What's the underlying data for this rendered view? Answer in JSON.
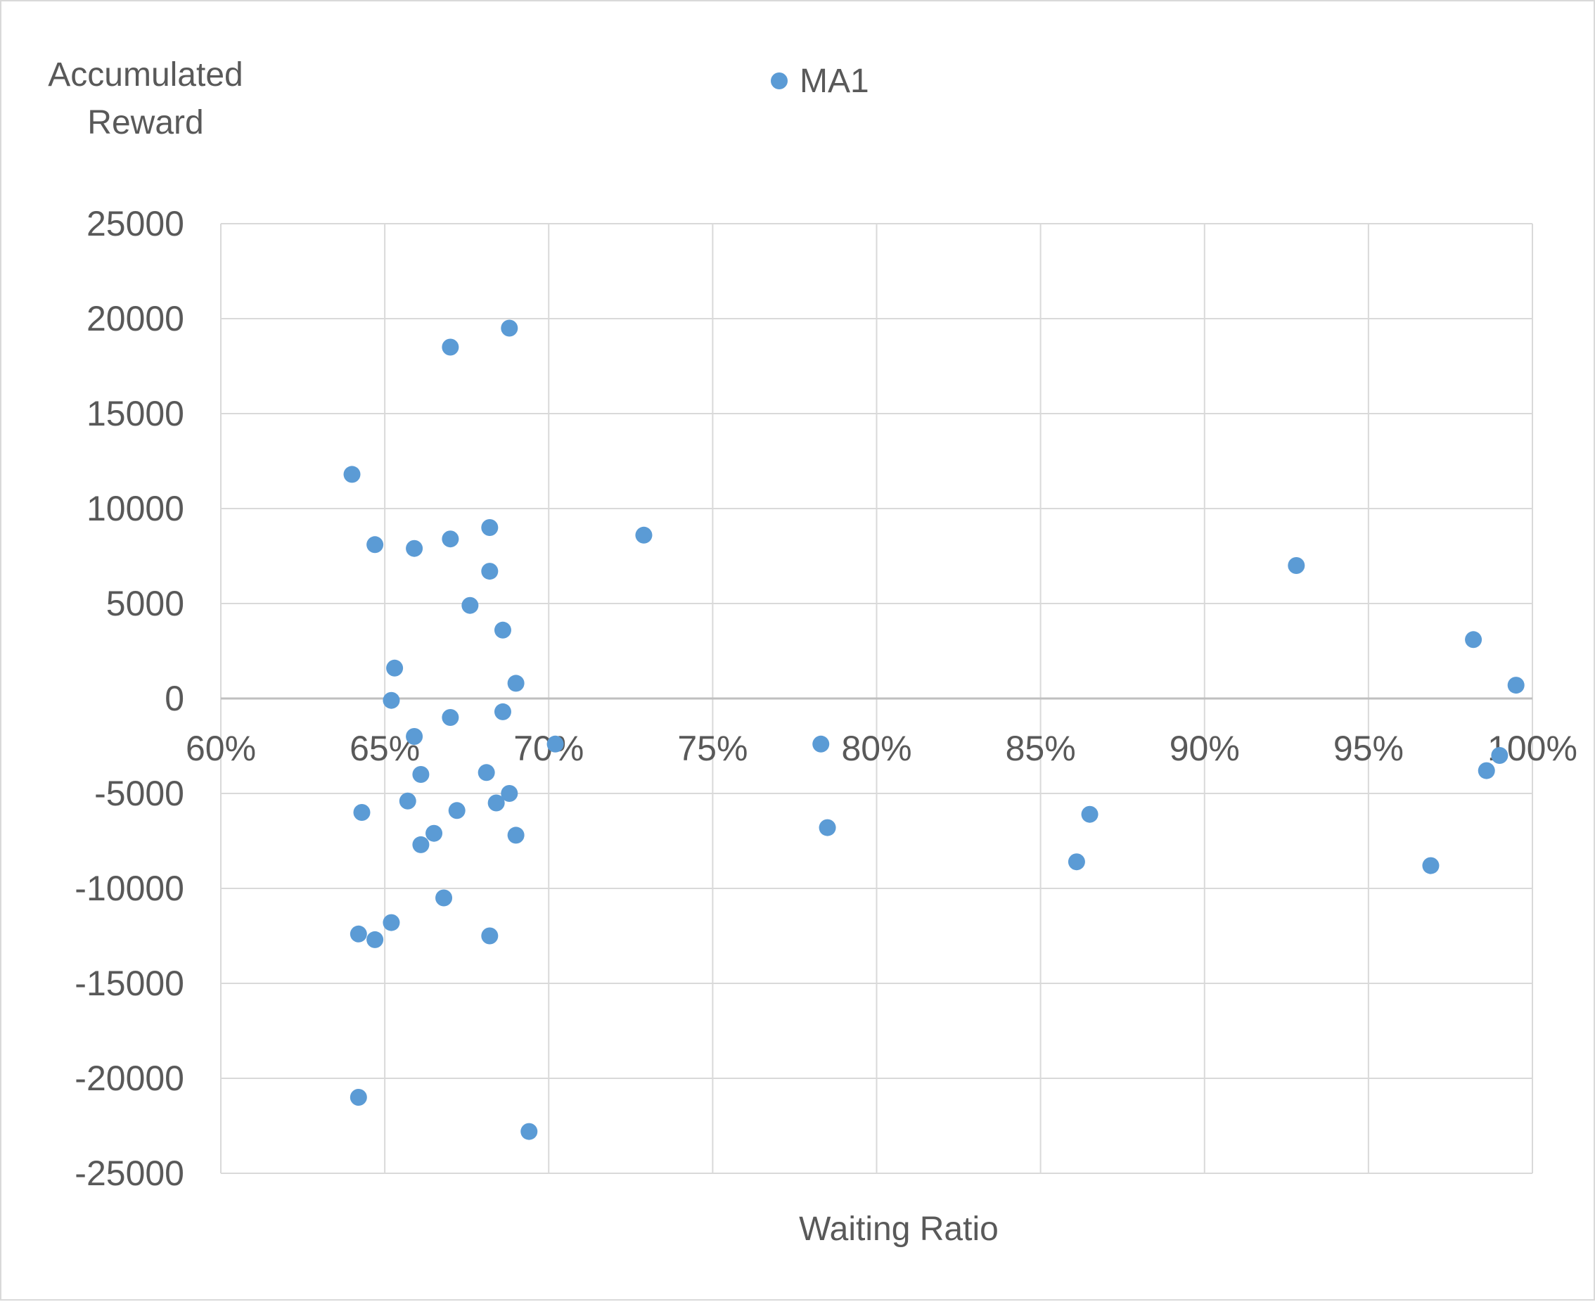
{
  "chart_data": {
    "type": "scatter",
    "title": "",
    "xlabel": "Waiting Ratio",
    "ylabel_lines": [
      "Accumulated",
      "Reward"
    ],
    "xlim": [
      0.6,
      1.0
    ],
    "ylim": [
      -25000,
      25000
    ],
    "x_ticks": [
      0.6,
      0.65,
      0.7,
      0.75,
      0.8,
      0.85,
      0.9,
      0.95,
      1.0
    ],
    "x_tick_labels": [
      "60%",
      "65%",
      "70%",
      "75%",
      "80%",
      "85%",
      "90%",
      "95%",
      "100%"
    ],
    "y_ticks": [
      25000,
      20000,
      15000,
      10000,
      5000,
      0,
      -5000,
      -10000,
      -15000,
      -20000,
      -25000
    ],
    "y_tick_labels": [
      "25000",
      "20000",
      "15000",
      "10000",
      "5000",
      "0",
      "-5000",
      "-10000",
      "-15000",
      "-20000",
      "-25000"
    ],
    "grid": true,
    "legend_position": "top-center",
    "marker_color": "#5b9bd5",
    "grid_color": "#d9d9d9",
    "series": [
      {
        "name": "MA1",
        "points": [
          [
            0.64,
            11800
          ],
          [
            0.642,
            -12400
          ],
          [
            0.642,
            -21000
          ],
          [
            0.643,
            -6000
          ],
          [
            0.647,
            8100
          ],
          [
            0.647,
            -12700
          ],
          [
            0.652,
            -100
          ],
          [
            0.652,
            -11800
          ],
          [
            0.653,
            1600
          ],
          [
            0.657,
            -5400
          ],
          [
            0.659,
            -2000
          ],
          [
            0.659,
            7900
          ],
          [
            0.661,
            -4000
          ],
          [
            0.661,
            -7700
          ],
          [
            0.665,
            -7100
          ],
          [
            0.668,
            -10500
          ],
          [
            0.67,
            18500
          ],
          [
            0.67,
            8400
          ],
          [
            0.67,
            -1000
          ],
          [
            0.672,
            -5900
          ],
          [
            0.676,
            4900
          ],
          [
            0.681,
            -3900
          ],
          [
            0.682,
            9000
          ],
          [
            0.682,
            6700
          ],
          [
            0.682,
            -12500
          ],
          [
            0.684,
            -5500
          ],
          [
            0.686,
            3600
          ],
          [
            0.686,
            -700
          ],
          [
            0.688,
            19500
          ],
          [
            0.688,
            -5000
          ],
          [
            0.69,
            800
          ],
          [
            0.69,
            -7200
          ],
          [
            0.694,
            -22800
          ],
          [
            0.702,
            -2400
          ],
          [
            0.729,
            8600
          ],
          [
            0.783,
            -2400
          ],
          [
            0.785,
            -6800
          ],
          [
            0.861,
            -8600
          ],
          [
            0.865,
            -6100
          ],
          [
            0.928,
            7000
          ],
          [
            0.969,
            -8800
          ],
          [
            0.982,
            3100
          ],
          [
            0.986,
            -3800
          ],
          [
            0.99,
            -3000
          ],
          [
            0.995,
            700
          ]
        ]
      }
    ]
  }
}
